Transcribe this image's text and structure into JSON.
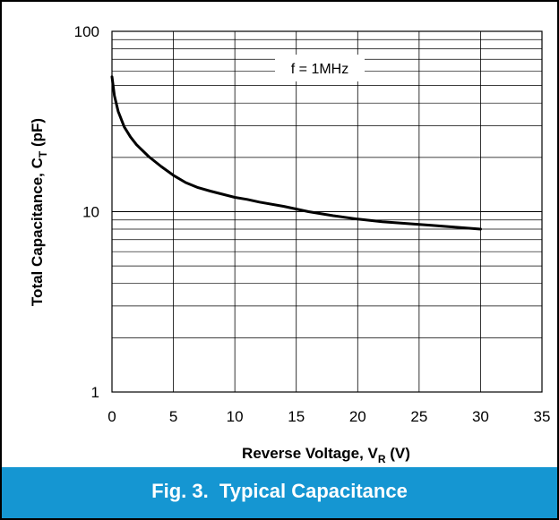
{
  "chart_data": {
    "type": "line",
    "title": "",
    "xlabel": {
      "main": "Reverse Voltage, V",
      "sub": "R",
      "unit": " (V)"
    },
    "ylabel": {
      "main": "Total Capacitance, C",
      "sub": "T",
      "unit": " (pF)"
    },
    "xlim": [
      0,
      35
    ],
    "ylim": [
      1,
      100
    ],
    "yscale": "log",
    "grid": true,
    "x_ticks": [
      "0",
      "5",
      "10",
      "15",
      "20",
      "25",
      "30",
      "35"
    ],
    "y_ticks": [
      "1",
      "10",
      "100"
    ],
    "annotation": "f = 1MHz",
    "series": [
      {
        "color": "#000000",
        "x": [
          0,
          0.2,
          0.5,
          1,
          1.5,
          2,
          3,
          4,
          5,
          6,
          7,
          8,
          9,
          10,
          11,
          12,
          14,
          16,
          18,
          20,
          22,
          24,
          26,
          28,
          30
        ],
        "y": [
          56,
          44,
          36,
          29.5,
          26,
          23.5,
          20.2,
          17.8,
          15.9,
          14.5,
          13.6,
          13,
          12.5,
          12,
          11.7,
          11.3,
          10.7,
          10,
          9.5,
          9.1,
          8.8,
          8.6,
          8.4,
          8.2,
          8.0
        ]
      }
    ]
  },
  "caption": "Fig. 3.  Typical Capacitance",
  "colors": {
    "caption_bg": "#1596d2",
    "caption_text": "#ffffff",
    "line": "#000000",
    "grid": "#000000"
  }
}
